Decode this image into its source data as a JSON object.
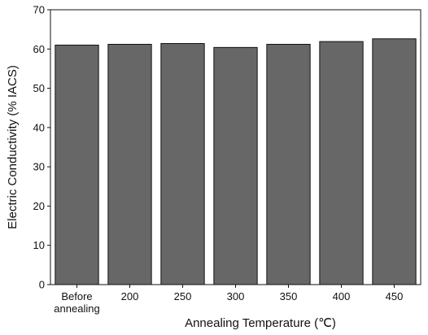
{
  "chart_data": {
    "type": "bar",
    "x_label": "Annealing Temperature (℃)",
    "y_label": "Electric Conductivity (% IACS)",
    "categories": [
      "Before annealing",
      "200",
      "250",
      "300",
      "350",
      "400",
      "450"
    ],
    "values": [
      61.0,
      61.2,
      61.4,
      60.4,
      61.2,
      61.9,
      62.6
    ],
    "color": "#676767",
    "ylim": [
      0,
      70
    ],
    "yticks": [
      0,
      10,
      20,
      30,
      40,
      50,
      60,
      70
    ],
    "grid": false
  }
}
